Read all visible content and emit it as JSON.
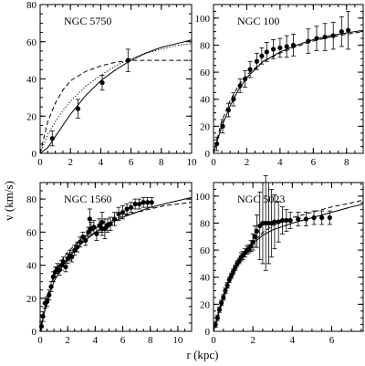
{
  "figure": {
    "ylabel": "v (km/s)",
    "xlabel": "r (kpc)"
  },
  "chart_data": [
    {
      "type": "scatter",
      "title": "NGC 5750",
      "xlim": [
        0,
        10
      ],
      "ylim": [
        0,
        80
      ],
      "xticks": [
        0,
        2,
        4,
        6,
        8,
        10
      ],
      "yticks": [
        0,
        20,
        40,
        60,
        80
      ],
      "points": [
        {
          "x": 0.8,
          "y": 8,
          "err": 4
        },
        {
          "x": 2.5,
          "y": 24,
          "err": 5
        },
        {
          "x": 4.1,
          "y": 38,
          "err": 4
        },
        {
          "x": 5.8,
          "y": 50,
          "err": 6
        }
      ],
      "curves": [
        {
          "style": "solid",
          "x": [
            0,
            0.5,
            1,
            1.5,
            2,
            3,
            4,
            5,
            6,
            7,
            8,
            9,
            10
          ],
          "y": [
            0,
            3,
            9,
            15,
            21,
            31,
            39,
            45,
            50,
            54,
            57,
            59,
            61
          ]
        },
        {
          "style": "dotted",
          "x": [
            0,
            0.5,
            1,
            1.5,
            2,
            3,
            4,
            5,
            6,
            7,
            8,
            9,
            10
          ],
          "y": [
            0,
            10,
            17,
            23,
            28,
            36,
            42,
            47,
            51,
            54,
            56,
            58,
            59
          ]
        },
        {
          "style": "dashed",
          "x": [
            0,
            0.5,
            1,
            1.5,
            2,
            3,
            4,
            5,
            6,
            7,
            8,
            9,
            10
          ],
          "y": [
            0,
            17,
            27,
            34,
            39,
            44,
            47,
            49,
            50,
            50,
            50,
            50,
            50
          ]
        }
      ]
    },
    {
      "type": "scatter",
      "title": "NGC 100",
      "xlim": [
        0,
        9
      ],
      "ylim": [
        0,
        110
      ],
      "xticks": [
        0,
        2,
        4,
        6,
        8
      ],
      "yticks": [
        0,
        20,
        40,
        60,
        80,
        100
      ],
      "points": [
        {
          "x": 0.2,
          "y": 7,
          "err": 5
        },
        {
          "x": 0.55,
          "y": 20,
          "err": 5
        },
        {
          "x": 0.9,
          "y": 32,
          "err": 5
        },
        {
          "x": 1.2,
          "y": 40,
          "err": 5
        },
        {
          "x": 1.6,
          "y": 50,
          "err": 5
        },
        {
          "x": 1.9,
          "y": 55,
          "err": 6
        },
        {
          "x": 2.2,
          "y": 62,
          "err": 6
        },
        {
          "x": 2.6,
          "y": 68,
          "err": 6
        },
        {
          "x": 2.9,
          "y": 72,
          "err": 6
        },
        {
          "x": 3.2,
          "y": 75,
          "err": 7
        },
        {
          "x": 3.6,
          "y": 77,
          "err": 7
        },
        {
          "x": 4.0,
          "y": 78,
          "err": 7
        },
        {
          "x": 4.4,
          "y": 79,
          "err": 8
        },
        {
          "x": 4.8,
          "y": 80,
          "err": 8
        },
        {
          "x": 5.7,
          "y": 83,
          "err": 9
        },
        {
          "x": 6.2,
          "y": 85,
          "err": 9
        },
        {
          "x": 6.7,
          "y": 86,
          "err": 10
        },
        {
          "x": 7.2,
          "y": 87,
          "err": 10
        },
        {
          "x": 7.7,
          "y": 90,
          "err": 11
        },
        {
          "x": 8.1,
          "y": 91,
          "err": 14
        }
      ],
      "curves": [
        {
          "style": "solid",
          "x": [
            0,
            0.5,
            1,
            1.5,
            2,
            3,
            4,
            5,
            6,
            7,
            8,
            9
          ],
          "y": [
            0,
            20,
            35,
            47,
            56,
            68,
            75,
            80,
            84,
            87,
            89,
            91
          ]
        },
        {
          "style": "dashed",
          "x": [
            0,
            0.5,
            1,
            1.5,
            2,
            3,
            4,
            5,
            6,
            7,
            8,
            9
          ],
          "y": [
            0,
            24,
            39,
            50,
            58,
            68,
            74,
            79,
            83,
            86,
            88,
            90
          ]
        }
      ]
    },
    {
      "type": "scatter",
      "title": "NGC 1560",
      "xlim": [
        0,
        11
      ],
      "ylim": [
        0,
        90
      ],
      "xticks": [
        0,
        2,
        4,
        6,
        8,
        10
      ],
      "yticks": [
        0,
        20,
        40,
        60,
        80
      ],
      "points": [
        {
          "x": 0.1,
          "y": 3,
          "err": 3
        },
        {
          "x": 0.2,
          "y": 9,
          "err": 3
        },
        {
          "x": 0.35,
          "y": 17,
          "err": 3
        },
        {
          "x": 0.5,
          "y": 18,
          "err": 3
        },
        {
          "x": 0.65,
          "y": 22,
          "err": 3
        },
        {
          "x": 0.8,
          "y": 27,
          "err": 3
        },
        {
          "x": 0.95,
          "y": 33,
          "err": 3
        },
        {
          "x": 1.1,
          "y": 36,
          "err": 3
        },
        {
          "x": 1.25,
          "y": 38,
          "err": 3
        },
        {
          "x": 1.4,
          "y": 37,
          "err": 3
        },
        {
          "x": 1.55,
          "y": 40,
          "err": 3
        },
        {
          "x": 1.7,
          "y": 42,
          "err": 3
        },
        {
          "x": 1.85,
          "y": 39,
          "err": 3
        },
        {
          "x": 2.0,
          "y": 44,
          "err": 3
        },
        {
          "x": 2.15,
          "y": 46,
          "err": 3
        },
        {
          "x": 2.3,
          "y": 45,
          "err": 3
        },
        {
          "x": 2.5,
          "y": 49,
          "err": 3
        },
        {
          "x": 2.7,
          "y": 51,
          "err": 3
        },
        {
          "x": 2.9,
          "y": 54,
          "err": 3
        },
        {
          "x": 3.1,
          "y": 57,
          "err": 3
        },
        {
          "x": 3.3,
          "y": 55,
          "err": 3
        },
        {
          "x": 3.5,
          "y": 60,
          "err": 3
        },
        {
          "x": 3.7,
          "y": 62,
          "err": 4
        },
        {
          "x": 3.9,
          "y": 63,
          "err": 4
        },
        {
          "x": 4.1,
          "y": 59,
          "err": 4
        },
        {
          "x": 4.3,
          "y": 64,
          "err": 4
        },
        {
          "x": 4.5,
          "y": 62,
          "err": 4
        },
        {
          "x": 4.7,
          "y": 62,
          "err": 6
        },
        {
          "x": 4.9,
          "y": 64,
          "err": 4
        },
        {
          "x": 5.1,
          "y": 65,
          "err": 4
        },
        {
          "x": 5.4,
          "y": 68,
          "err": 4
        },
        {
          "x": 5.7,
          "y": 71,
          "err": 4
        },
        {
          "x": 6.0,
          "y": 72,
          "err": 4
        },
        {
          "x": 6.3,
          "y": 74,
          "err": 3
        },
        {
          "x": 6.6,
          "y": 75,
          "err": 3
        },
        {
          "x": 6.9,
          "y": 77,
          "err": 3
        },
        {
          "x": 7.2,
          "y": 77,
          "err": 3
        },
        {
          "x": 7.5,
          "y": 78,
          "err": 3
        },
        {
          "x": 7.8,
          "y": 78,
          "err": 3
        },
        {
          "x": 8.1,
          "y": 78,
          "err": 3
        },
        {
          "x": 3.6,
          "y": 68,
          "err": 6
        },
        {
          "x": 4.5,
          "y": 66,
          "err": 6
        }
      ],
      "curves": [
        {
          "style": "solid",
          "x": [
            0,
            0.5,
            1,
            1.5,
            2,
            3,
            4,
            5,
            6,
            7,
            8,
            9,
            10,
            11
          ],
          "y": [
            0,
            18,
            30,
            38,
            44,
            53,
            60,
            65,
            69,
            72,
            75,
            77,
            79,
            81
          ]
        },
        {
          "style": "dashed",
          "x": [
            0,
            0.5,
            1,
            1.5,
            2,
            3,
            4,
            5,
            6,
            7,
            8,
            9,
            10,
            11
          ],
          "y": [
            0,
            21,
            34,
            42,
            48,
            56,
            62,
            66,
            70,
            72,
            74,
            76,
            77,
            78
          ]
        }
      ]
    },
    {
      "type": "scatter",
      "title": "NGC 5023",
      "xlim": [
        0,
        7.6
      ],
      "ylim": [
        0,
        110
      ],
      "xticks": [
        0,
        2,
        4,
        6
      ],
      "yticks": [
        0,
        20,
        40,
        60,
        80,
        100
      ],
      "points": [
        {
          "x": 0.1,
          "y": 5,
          "err": 2
        },
        {
          "x": 0.2,
          "y": 10,
          "err": 2
        },
        {
          "x": 0.3,
          "y": 16,
          "err": 2
        },
        {
          "x": 0.4,
          "y": 21,
          "err": 2
        },
        {
          "x": 0.5,
          "y": 25,
          "err": 2
        },
        {
          "x": 0.6,
          "y": 30,
          "err": 2
        },
        {
          "x": 0.7,
          "y": 34,
          "err": 2
        },
        {
          "x": 0.8,
          "y": 38,
          "err": 2
        },
        {
          "x": 0.9,
          "y": 41,
          "err": 2
        },
        {
          "x": 1.0,
          "y": 44,
          "err": 2
        },
        {
          "x": 1.1,
          "y": 47,
          "err": 2
        },
        {
          "x": 1.2,
          "y": 50,
          "err": 2
        },
        {
          "x": 1.3,
          "y": 52,
          "err": 2
        },
        {
          "x": 1.4,
          "y": 55,
          "err": 3
        },
        {
          "x": 1.5,
          "y": 56,
          "err": 3
        },
        {
          "x": 1.6,
          "y": 58,
          "err": 3
        },
        {
          "x": 1.7,
          "y": 60,
          "err": 3
        },
        {
          "x": 1.8,
          "y": 61,
          "err": 3
        },
        {
          "x": 1.9,
          "y": 63,
          "err": 4
        },
        {
          "x": 2.0,
          "y": 66,
          "err": 6
        },
        {
          "x": 2.1,
          "y": 70,
          "err": 8
        },
        {
          "x": 2.2,
          "y": 74,
          "err": 12
        },
        {
          "x": 2.35,
          "y": 78,
          "err": 25
        },
        {
          "x": 2.5,
          "y": 80,
          "err": 30
        },
        {
          "x": 2.65,
          "y": 80,
          "err": 35
        },
        {
          "x": 2.8,
          "y": 80,
          "err": 30
        },
        {
          "x": 2.95,
          "y": 80,
          "err": 25
        },
        {
          "x": 3.1,
          "y": 81,
          "err": 20
        },
        {
          "x": 3.3,
          "y": 81,
          "err": 15
        },
        {
          "x": 3.5,
          "y": 82,
          "err": 10
        },
        {
          "x": 3.7,
          "y": 82,
          "err": 8
        },
        {
          "x": 3.9,
          "y": 82,
          "err": 6
        },
        {
          "x": 4.3,
          "y": 83,
          "err": 5
        },
        {
          "x": 4.7,
          "y": 83,
          "err": 5
        },
        {
          "x": 5.1,
          "y": 84,
          "err": 5
        },
        {
          "x": 5.5,
          "y": 84,
          "err": 5
        },
        {
          "x": 5.9,
          "y": 84,
          "err": 5
        }
      ],
      "curves": [
        {
          "style": "solid",
          "x": [
            0,
            0.5,
            1,
            1.5,
            2,
            2.5,
            3,
            4,
            5,
            6,
            7,
            7.6
          ],
          "y": [
            0,
            27,
            45,
            57,
            65,
            71,
            75,
            80,
            84,
            88,
            92,
            94
          ]
        },
        {
          "style": "dashed",
          "x": [
            0,
            0.5,
            1,
            1.5,
            2,
            2.5,
            3,
            4,
            5,
            6,
            7,
            7.6
          ],
          "y": [
            0,
            25,
            43,
            56,
            66,
            73,
            78,
            84,
            88,
            92,
            95,
            97
          ]
        }
      ]
    }
  ]
}
